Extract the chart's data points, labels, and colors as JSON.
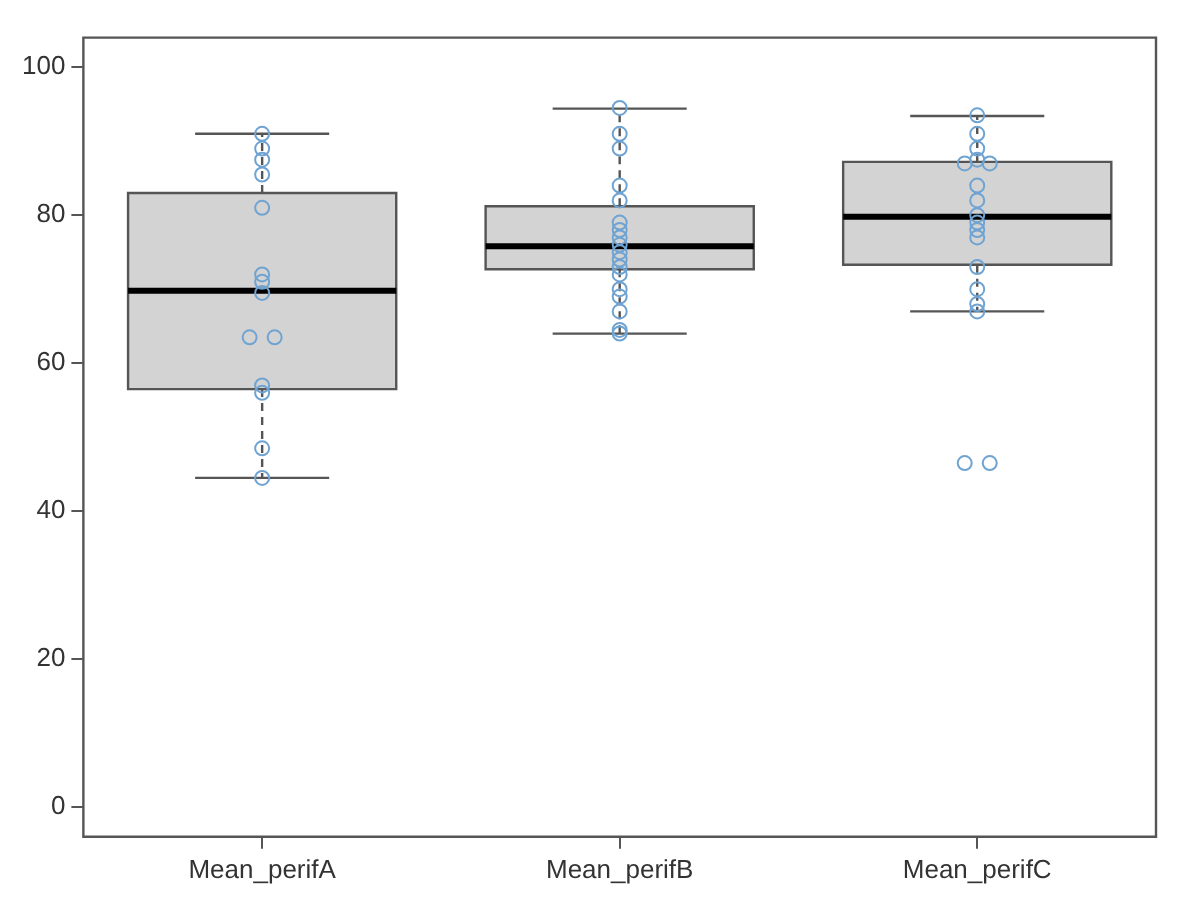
{
  "chart_data": {
    "type": "box",
    "categories": [
      "Mean_perifA",
      "Mean_perifB",
      "Mean_perifC"
    ],
    "boxes": [
      {
        "low": 44.5,
        "q1": 56.5,
        "median": 69.8,
        "q3": 83,
        "high": 91
      },
      {
        "low": 64,
        "q1": 72.7,
        "median": 75.8,
        "q3": 81.2,
        "high": 94.4
      },
      {
        "low": 67,
        "q1": 73.3,
        "median": 79.8,
        "q3": 87.2,
        "high": 93.4
      }
    ],
    "ylim": [
      -4,
      104
    ],
    "yticks": [
      0,
      20,
      40,
      60,
      80,
      100
    ],
    "marker": "circle",
    "series": [
      {
        "type": "scatter",
        "color": "#6fa3d2",
        "x": [
          "Mean_perifA",
          "Mean_perifA",
          "Mean_perifA",
          "Mean_perifA",
          "Mean_perifA",
          "Mean_perifA",
          "Mean_perifA",
          "Mean_perifA",
          "Mean_perifA",
          "Mean_perifA",
          "Mean_perifA",
          "Mean_perifA",
          "Mean_perifA",
          "Mean_perifA",
          "Mean_perifB",
          "Mean_perifB",
          "Mean_perifB",
          "Mean_perifB",
          "Mean_perifB",
          "Mean_perifB",
          "Mean_perifB",
          "Mean_perifB",
          "Mean_perifB",
          "Mean_perifB",
          "Mean_perifB",
          "Mean_perifB",
          "Mean_perifB",
          "Mean_perifB",
          "Mean_perifB",
          "Mean_perifB",
          "Mean_perifB",
          "Mean_perifB",
          "Mean_perifC",
          "Mean_perifC",
          "Mean_perifC",
          "Mean_perifC",
          "Mean_perifC",
          "Mean_perifC",
          "Mean_perifC",
          "Mean_perifC",
          "Mean_perifC",
          "Mean_perifC",
          "Mean_perifC",
          "Mean_perifC",
          "Mean_perifC",
          "Mean_perifC",
          "Mean_perifC",
          "Mean_perifC",
          "Mean_perifC",
          "Mean_perifC"
        ],
        "values": [
          91,
          89,
          87.5,
          85.5,
          81,
          72,
          71,
          69.5,
          63.5,
          63.5,
          57,
          56,
          48.5,
          44.5,
          94.5,
          91,
          89,
          84,
          82,
          79,
          78,
          77,
          76,
          75,
          74,
          73,
          72,
          70,
          69,
          67,
          64.5,
          64,
          93.5,
          91,
          89,
          87.5,
          87,
          87,
          84,
          82,
          80,
          79,
          78,
          77,
          73,
          70,
          68,
          67,
          46.5,
          46.5
        ]
      }
    ]
  }
}
